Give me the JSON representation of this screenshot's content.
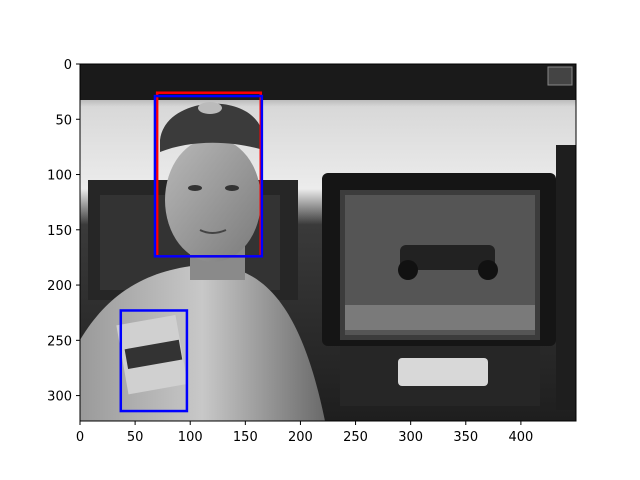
{
  "chart_data": {
    "type": "image",
    "xlim": [
      0,
      450
    ],
    "ylim": [
      323,
      0
    ],
    "x_ticks": [
      0,
      50,
      100,
      150,
      200,
      250,
      300,
      350,
      400
    ],
    "y_ticks": [
      0,
      50,
      100,
      150,
      200,
      250,
      300
    ],
    "x_tick_labels": [
      "0",
      "50",
      "100",
      "150",
      "200",
      "250",
      "300",
      "350",
      "400"
    ],
    "y_tick_labels": [
      "0",
      "50",
      "100",
      "150",
      "200",
      "250",
      "300"
    ],
    "image_description": "grayscale photo of a racing driver in cap and race suit, with a monitor showing a race car on the right",
    "boxes": [
      {
        "label": "",
        "color": "#ff0000",
        "x0": 70,
        "y0": 26,
        "x1": 164,
        "y1": 174
      },
      {
        "label": "",
        "color": "#0000ff",
        "x0": 68,
        "y0": 29,
        "x1": 165,
        "y1": 174
      },
      {
        "label": "",
        "color": "#0000ff",
        "x0": 37,
        "y0": 223,
        "x1": 97,
        "y1": 314
      }
    ]
  }
}
